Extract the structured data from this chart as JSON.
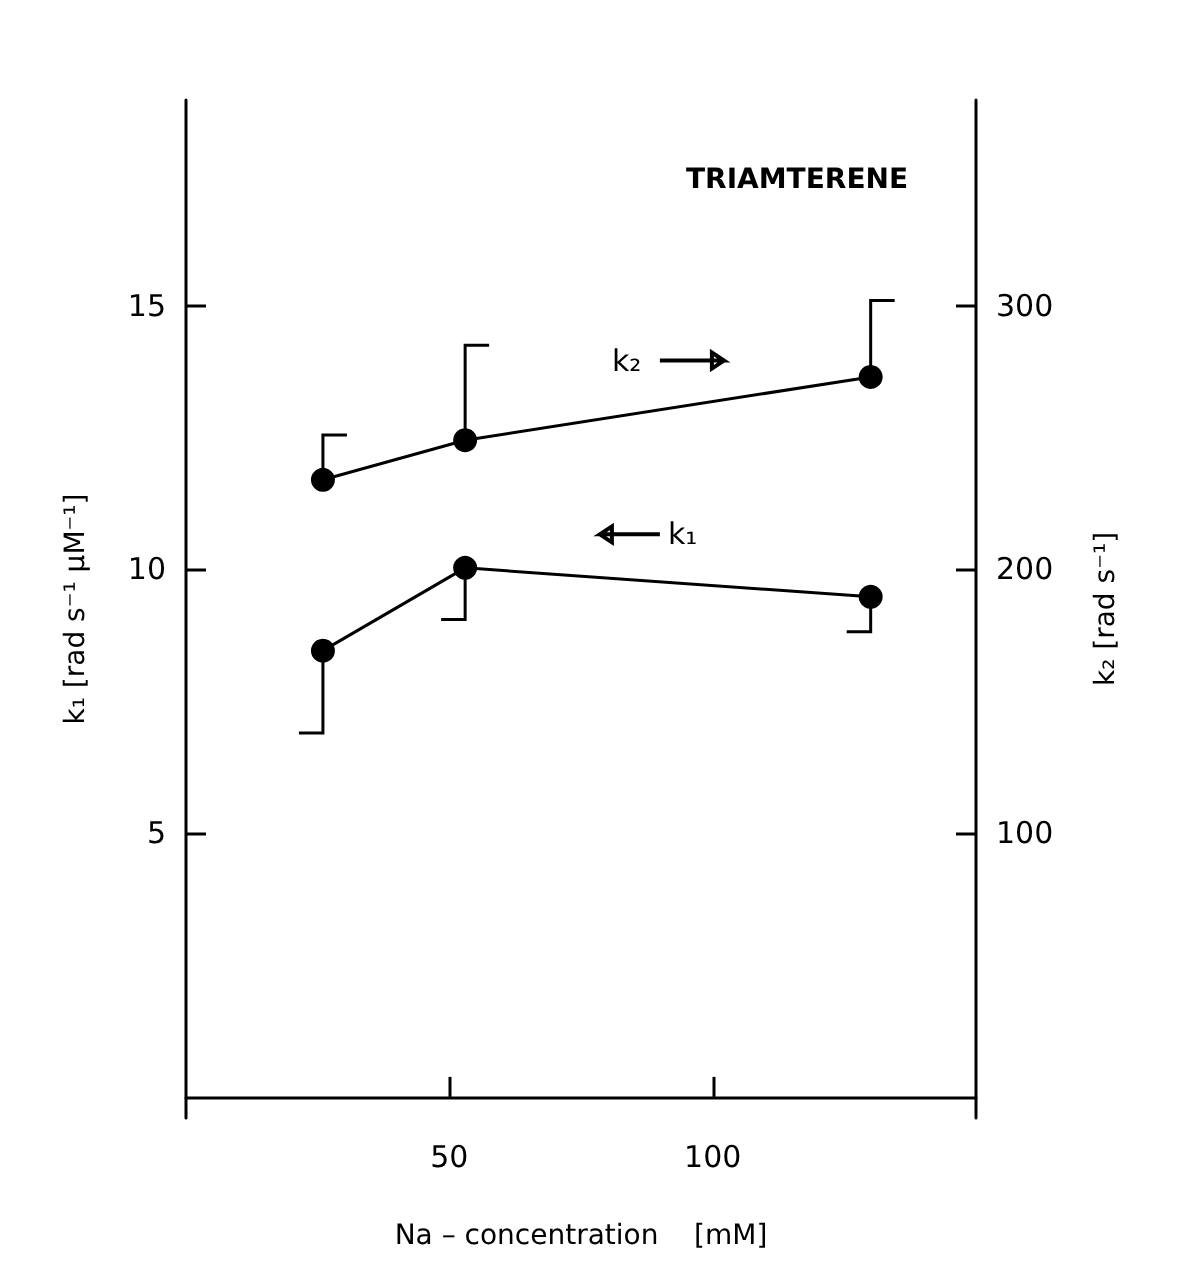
{
  "chart_data": {
    "type": "line",
    "title": "TRIAMTERENE",
    "xlabel": "Na – concentration    [mM]",
    "ylabel": "k₁ [rad s⁻¹ μM⁻¹]",
    "y2label": "k₂ [rad s⁻¹]",
    "x": [
      26,
      53,
      130
    ],
    "series": [
      {
        "name": "k₂",
        "color": "#000000",
        "axis": "y2",
        "values": [
          234,
          249,
          273
        ],
        "errors": [
          [
            234,
            251
          ],
          [
            249,
            285
          ],
          [
            273,
            302
          ]
        ]
      },
      {
        "name": "k₁",
        "color": "#000000",
        "axis": "y",
        "values": [
          8.46,
          10.03,
          9.48
        ],
        "errors": [
          [
            6.9,
            8.46
          ],
          [
            9.05,
            10.03
          ],
          [
            8.82,
            9.48
          ]
        ]
      }
    ],
    "marker": "circle",
    "line_style": "solid",
    "xlim": [
      0,
      150
    ],
    "xticks": [
      50,
      100
    ],
    "ylim": [
      -0.4,
      18.9
    ],
    "yticks": [
      5,
      10,
      15
    ],
    "y2lim": [
      -8,
      378
    ],
    "y2ticks": [
      100,
      200,
      300
    ]
  }
}
